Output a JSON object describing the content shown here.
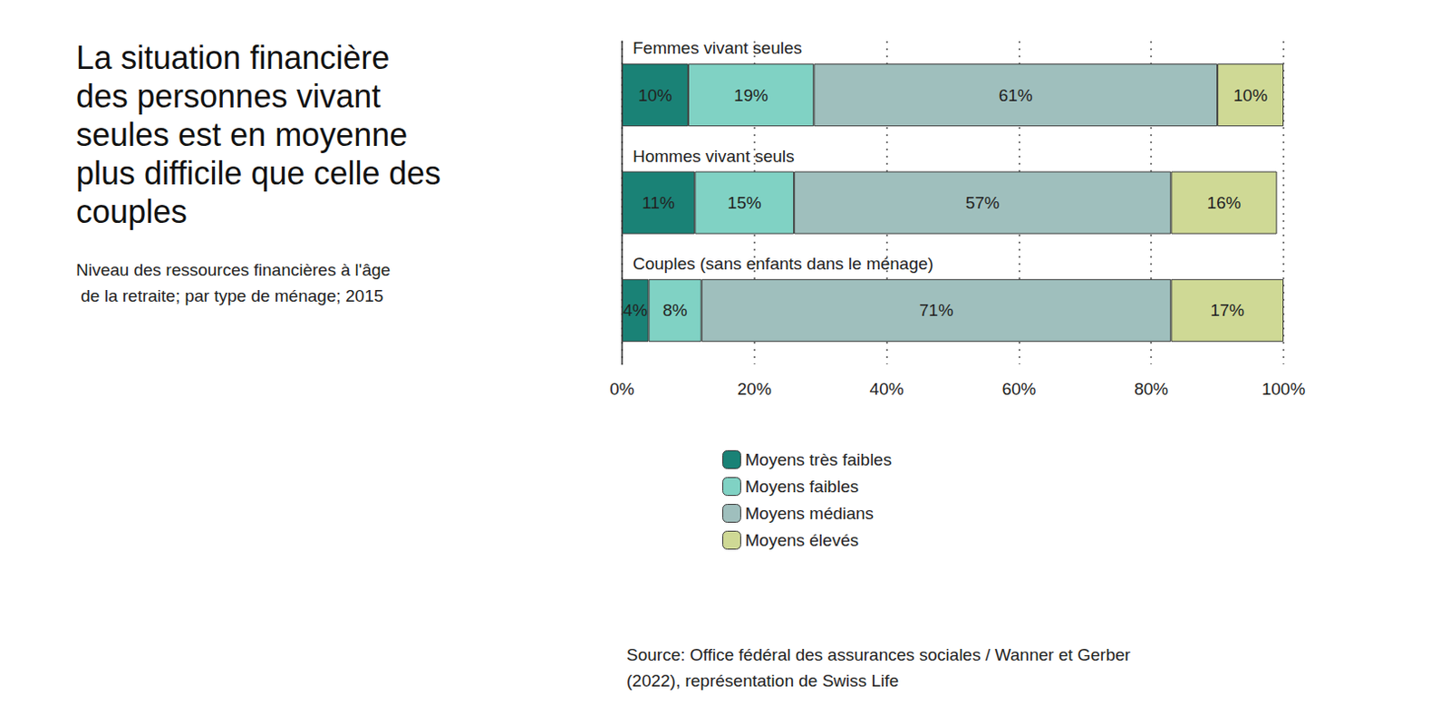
{
  "chart_data": {
    "type": "bar",
    "title": "La situation financière des personnes vivant seules est en moyenne plus difficile que celle des couples",
    "subtitle": "Niveau des ressources financières à l'âge de la retraite; par type de ménage; 2015",
    "source": "Source: Office fédéral des assurances sociales / Wanner et Gerber (2022), représentation de Swiss Life",
    "orientation": "horizontal",
    "stacked": true,
    "data_labels": true,
    "grid": true,
    "legend": "bottom",
    "categories": [
      "Femmes vivant seules",
      "Hommes vivant seuls",
      "Couples (sans enfants dans le ménage)"
    ],
    "series": [
      {
        "name": "Moyens très faibles",
        "color": "#1a8276",
        "values": [
          10,
          11,
          4
        ],
        "value_labels": [
          "10%",
          "11%",
          "4%"
        ]
      },
      {
        "name": "Moyens faibles",
        "color": "#80d2c4",
        "values": [
          19,
          15,
          8
        ],
        "value_labels": [
          "19%",
          "15%",
          "8%"
        ]
      },
      {
        "name": "Moyens médians",
        "color": "#9fbfbd",
        "values": [
          61,
          57,
          71
        ],
        "value_labels": [
          "61%",
          "57%",
          "71%"
        ]
      },
      {
        "name": "Moyens élevés",
        "color": "#cfd995",
        "values": [
          10,
          16,
          17
        ],
        "value_labels": [
          "10%",
          "16%",
          "17%"
        ]
      }
    ],
    "xlim": [
      0,
      100
    ],
    "xticks": [
      {
        "value": 0,
        "label": "0%"
      },
      {
        "value": 20,
        "label": "20%"
      },
      {
        "value": 40,
        "label": "40%"
      },
      {
        "value": 60,
        "label": "60%"
      },
      {
        "value": 80,
        "label": "80%"
      },
      {
        "value": 100,
        "label": "100%"
      }
    ]
  }
}
